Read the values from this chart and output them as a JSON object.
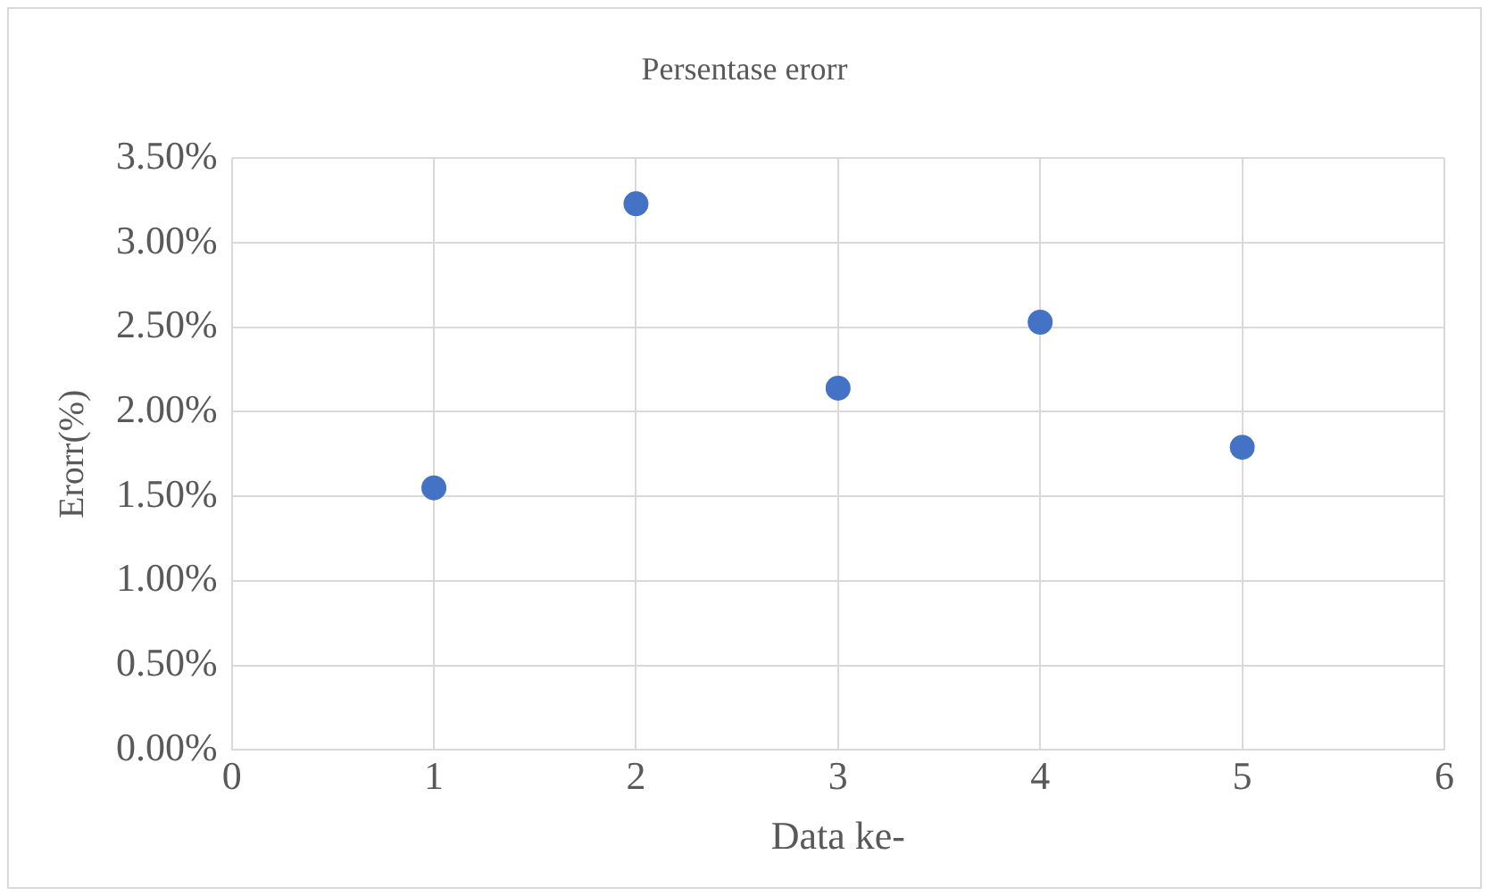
{
  "chart_data": {
    "type": "scatter",
    "title": "Persentase erorr",
    "xlabel": "Data ke-",
    "ylabel": "Erorr(%)",
    "x": [
      1,
      2,
      3,
      4,
      5
    ],
    "series": [
      {
        "color": "#4472c4",
        "values": [
          1.55,
          3.23,
          2.14,
          2.53,
          1.79
        ]
      }
    ],
    "xlim": [
      0,
      6
    ],
    "xticks": [
      0,
      1,
      2,
      3,
      4,
      5,
      6
    ],
    "ylim": [
      0,
      3.5
    ],
    "yticks": [
      {
        "value": 0,
        "label": "0.00%"
      },
      {
        "value": 0.5,
        "label": "0.50%"
      },
      {
        "value": 1,
        "label": "1.00%"
      },
      {
        "value": 1.5,
        "label": "1.50%"
      },
      {
        "value": 2,
        "label": "2.00%"
      },
      {
        "value": 2.5,
        "label": "2.50%"
      },
      {
        "value": 3,
        "label": "3.00%"
      },
      {
        "value": 3.5,
        "label": "3.50%"
      }
    ],
    "grid": true,
    "legend": false,
    "marker": "circle"
  }
}
